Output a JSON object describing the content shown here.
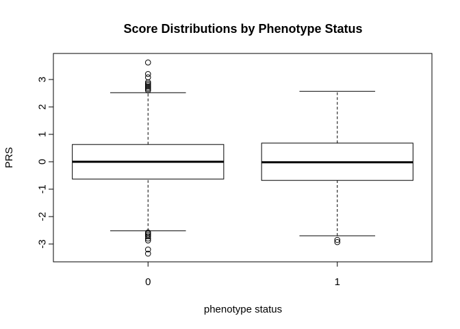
{
  "chart_data": {
    "type": "boxplot",
    "title": "Score Distributions by Phenotype Status",
    "xlabel": "phenotype status",
    "ylabel": "PRS",
    "categories": [
      "0",
      "1"
    ],
    "ylim": [
      -3.65,
      3.95
    ],
    "yticks": [
      -3,
      -2,
      -1,
      0,
      1,
      2,
      3
    ],
    "grid": false,
    "legend": "none",
    "boxes": [
      {
        "category": "0",
        "whisker_low": -2.52,
        "q1": -0.63,
        "median": 0.0,
        "q3": 0.63,
        "whisker_high": 2.52,
        "outliers": [
          3.62,
          3.2,
          3.08,
          2.9,
          2.85,
          2.8,
          2.75,
          2.7,
          2.65,
          2.6,
          -2.58,
          -2.62,
          -2.67,
          -2.72,
          -2.8,
          -2.87,
          -3.2,
          -3.35
        ]
      },
      {
        "category": "1",
        "whisker_low": -2.7,
        "q1": -0.68,
        "median": -0.02,
        "q3": 0.68,
        "whisker_high": 2.57,
        "outliers": [
          -2.85,
          -2.93
        ]
      }
    ]
  }
}
